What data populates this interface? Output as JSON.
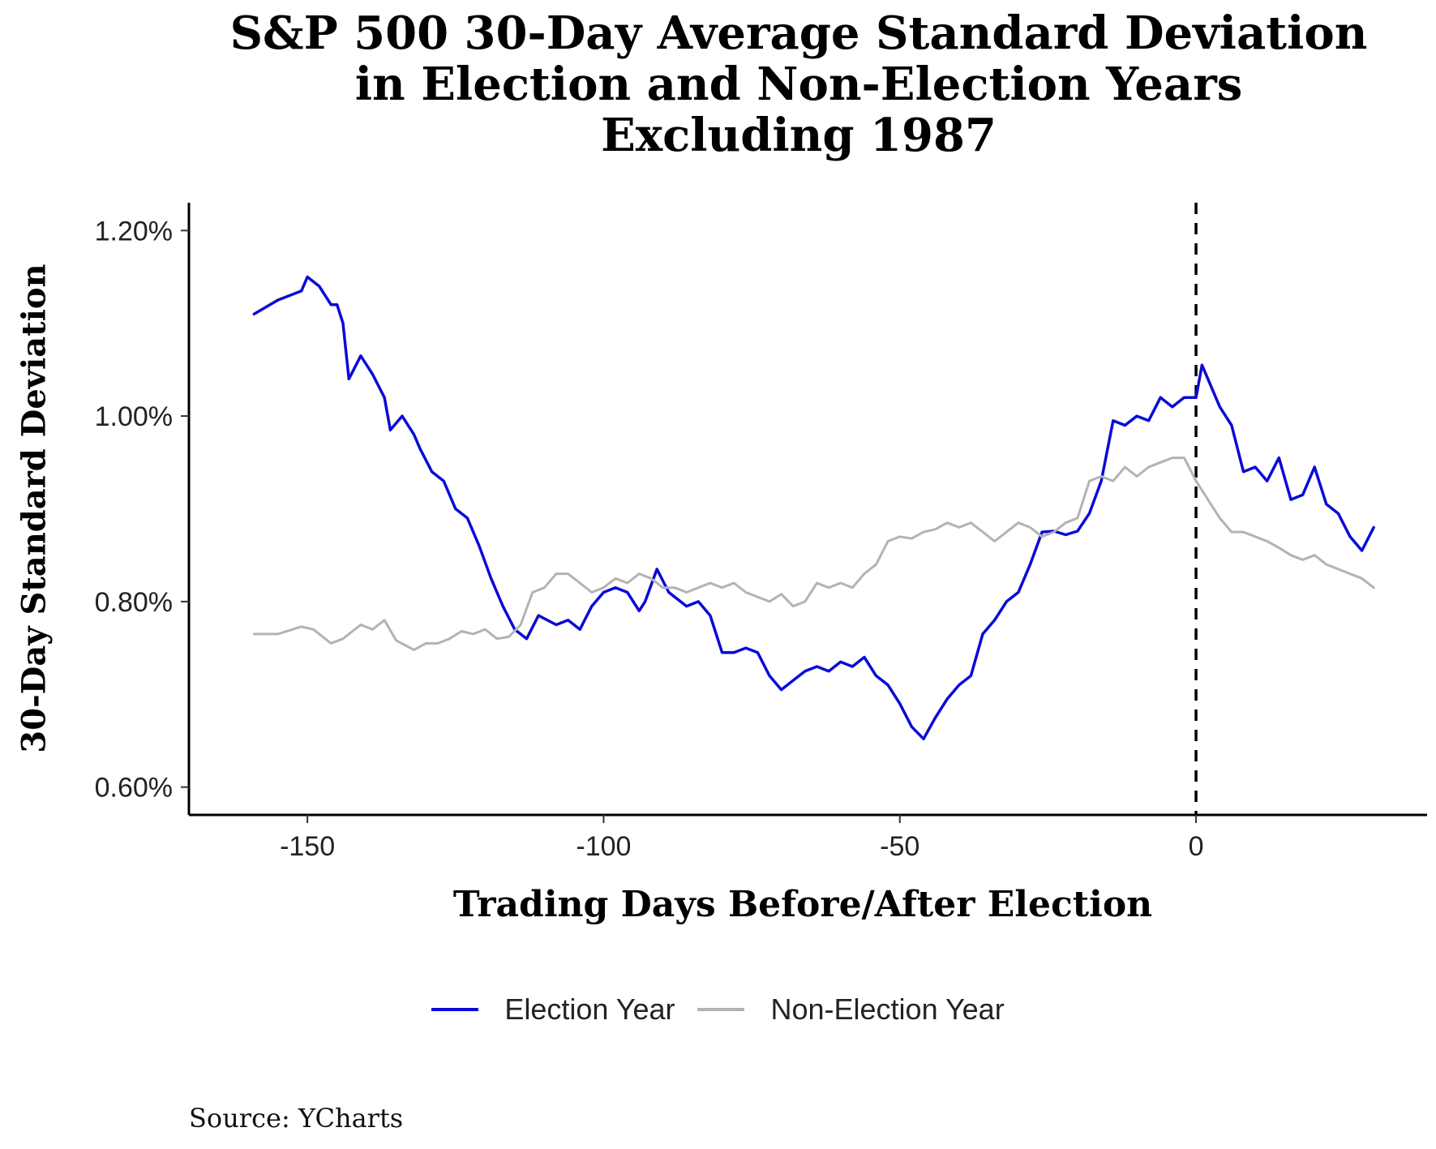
{
  "chart_data": {
    "type": "line",
    "title_lines": [
      "S&P 500 30-Day Average Standard Deviation",
      "in Election and Non-Election Years",
      "Excluding 1987"
    ],
    "xlabel": "Trading Days Before/After Election",
    "ylabel": "30-Day Standard Deviation",
    "xlim": [
      -170,
      39
    ],
    "ylim": [
      0.57,
      1.23
    ],
    "x_ticks": [
      -150,
      -100,
      -50,
      0
    ],
    "x_tick_labels": [
      "-150",
      "-100",
      "-50",
      "0"
    ],
    "y_ticks": [
      0.6,
      0.8,
      1.0,
      1.2
    ],
    "y_tick_labels": [
      "0.60%",
      "0.80%",
      "1.00%",
      "1.20%"
    ],
    "reference_line_x": 0,
    "grid": false,
    "legend_position": "bottom",
    "series": [
      {
        "name": "Election Year",
        "color": "#0a0ad8",
        "x": [
          -159,
          -155,
          -151,
          -150,
          -148,
          -146,
          -145,
          -144,
          -143,
          -141,
          -139,
          -137,
          -136,
          -134,
          -132,
          -131,
          -129,
          -127,
          -125,
          -123,
          -121,
          -119,
          -117,
          -115,
          -113,
          -111,
          -108,
          -106,
          -104,
          -102,
          -100,
          -98,
          -96,
          -94,
          -93,
          -91,
          -89,
          -86,
          -84,
          -82,
          -80,
          -78,
          -76,
          -74,
          -72,
          -70,
          -68,
          -66,
          -64,
          -62,
          -60,
          -58,
          -56,
          -54,
          -52,
          -50,
          -48,
          -46,
          -44,
          -42,
          -40,
          -38,
          -36,
          -34,
          -32,
          -30,
          -28,
          -26,
          -24,
          -22,
          -20,
          -18,
          -16,
          -14,
          -12,
          -10,
          -8,
          -6,
          -4,
          -2,
          0,
          1,
          2,
          4,
          6,
          8,
          10,
          12,
          14,
          16,
          18,
          20,
          22,
          24,
          26,
          28,
          30
        ],
        "values": [
          1.11,
          1.125,
          1.135,
          1.15,
          1.14,
          1.12,
          1.12,
          1.1,
          1.04,
          1.065,
          1.045,
          1.02,
          0.985,
          1.0,
          0.98,
          0.965,
          0.94,
          0.93,
          0.9,
          0.89,
          0.86,
          0.825,
          0.795,
          0.77,
          0.76,
          0.785,
          0.775,
          0.78,
          0.77,
          0.795,
          0.81,
          0.815,
          0.81,
          0.79,
          0.8,
          0.835,
          0.81,
          0.795,
          0.8,
          0.785,
          0.745,
          0.745,
          0.75,
          0.745,
          0.72,
          0.705,
          0.715,
          0.725,
          0.73,
          0.725,
          0.735,
          0.73,
          0.74,
          0.72,
          0.71,
          0.69,
          0.665,
          0.652,
          0.675,
          0.695,
          0.71,
          0.72,
          0.765,
          0.78,
          0.8,
          0.81,
          0.84,
          0.875,
          0.876,
          0.872,
          0.876,
          0.895,
          0.93,
          0.995,
          0.99,
          1.0,
          0.995,
          1.02,
          1.01,
          1.02,
          1.02,
          1.055,
          1.04,
          1.01,
          0.99,
          0.94,
          0.945,
          0.93,
          0.955,
          0.91,
          0.915,
          0.945,
          0.905,
          0.895,
          0.87,
          0.855,
          0.88
        ]
      },
      {
        "name": "Non-Election Year",
        "color": "#b3b3b3",
        "x": [
          -159,
          -155,
          -151,
          -149,
          -146,
          -144,
          -141,
          -139,
          -137,
          -135,
          -132,
          -130,
          -128,
          -126,
          -124,
          -122,
          -120,
          -118,
          -116,
          -114,
          -112,
          -110,
          -108,
          -106,
          -104,
          -102,
          -100,
          -98,
          -96,
          -94,
          -92,
          -90,
          -88,
          -86,
          -84,
          -82,
          -80,
          -78,
          -76,
          -74,
          -72,
          -70,
          -68,
          -66,
          -64,
          -62,
          -60,
          -58,
          -56,
          -54,
          -52,
          -50,
          -48,
          -46,
          -44,
          -42,
          -40,
          -38,
          -36,
          -34,
          -32,
          -30,
          -28,
          -26,
          -24,
          -22,
          -20,
          -18,
          -16,
          -14,
          -12,
          -10,
          -8,
          -6,
          -4,
          -2,
          0,
          2,
          4,
          6,
          8,
          10,
          12,
          14,
          16,
          18,
          20,
          22,
          24,
          26,
          28,
          30
        ],
        "values": [
          0.765,
          0.765,
          0.773,
          0.77,
          0.755,
          0.76,
          0.775,
          0.77,
          0.78,
          0.758,
          0.748,
          0.755,
          0.755,
          0.76,
          0.768,
          0.765,
          0.77,
          0.76,
          0.762,
          0.775,
          0.81,
          0.815,
          0.83,
          0.83,
          0.82,
          0.81,
          0.815,
          0.825,
          0.82,
          0.83,
          0.825,
          0.815,
          0.815,
          0.81,
          0.815,
          0.82,
          0.815,
          0.82,
          0.81,
          0.805,
          0.8,
          0.808,
          0.795,
          0.8,
          0.82,
          0.815,
          0.82,
          0.815,
          0.83,
          0.84,
          0.865,
          0.87,
          0.868,
          0.875,
          0.878,
          0.885,
          0.88,
          0.885,
          0.875,
          0.865,
          0.875,
          0.885,
          0.88,
          0.87,
          0.875,
          0.885,
          0.89,
          0.93,
          0.935,
          0.93,
          0.945,
          0.935,
          0.945,
          0.95,
          0.955,
          0.955,
          0.93,
          0.91,
          0.89,
          0.875,
          0.875,
          0.87,
          0.865,
          0.858,
          0.85,
          0.845,
          0.85,
          0.84,
          0.835,
          0.83,
          0.825,
          0.815
        ]
      }
    ]
  },
  "source": "Source:  YCharts"
}
